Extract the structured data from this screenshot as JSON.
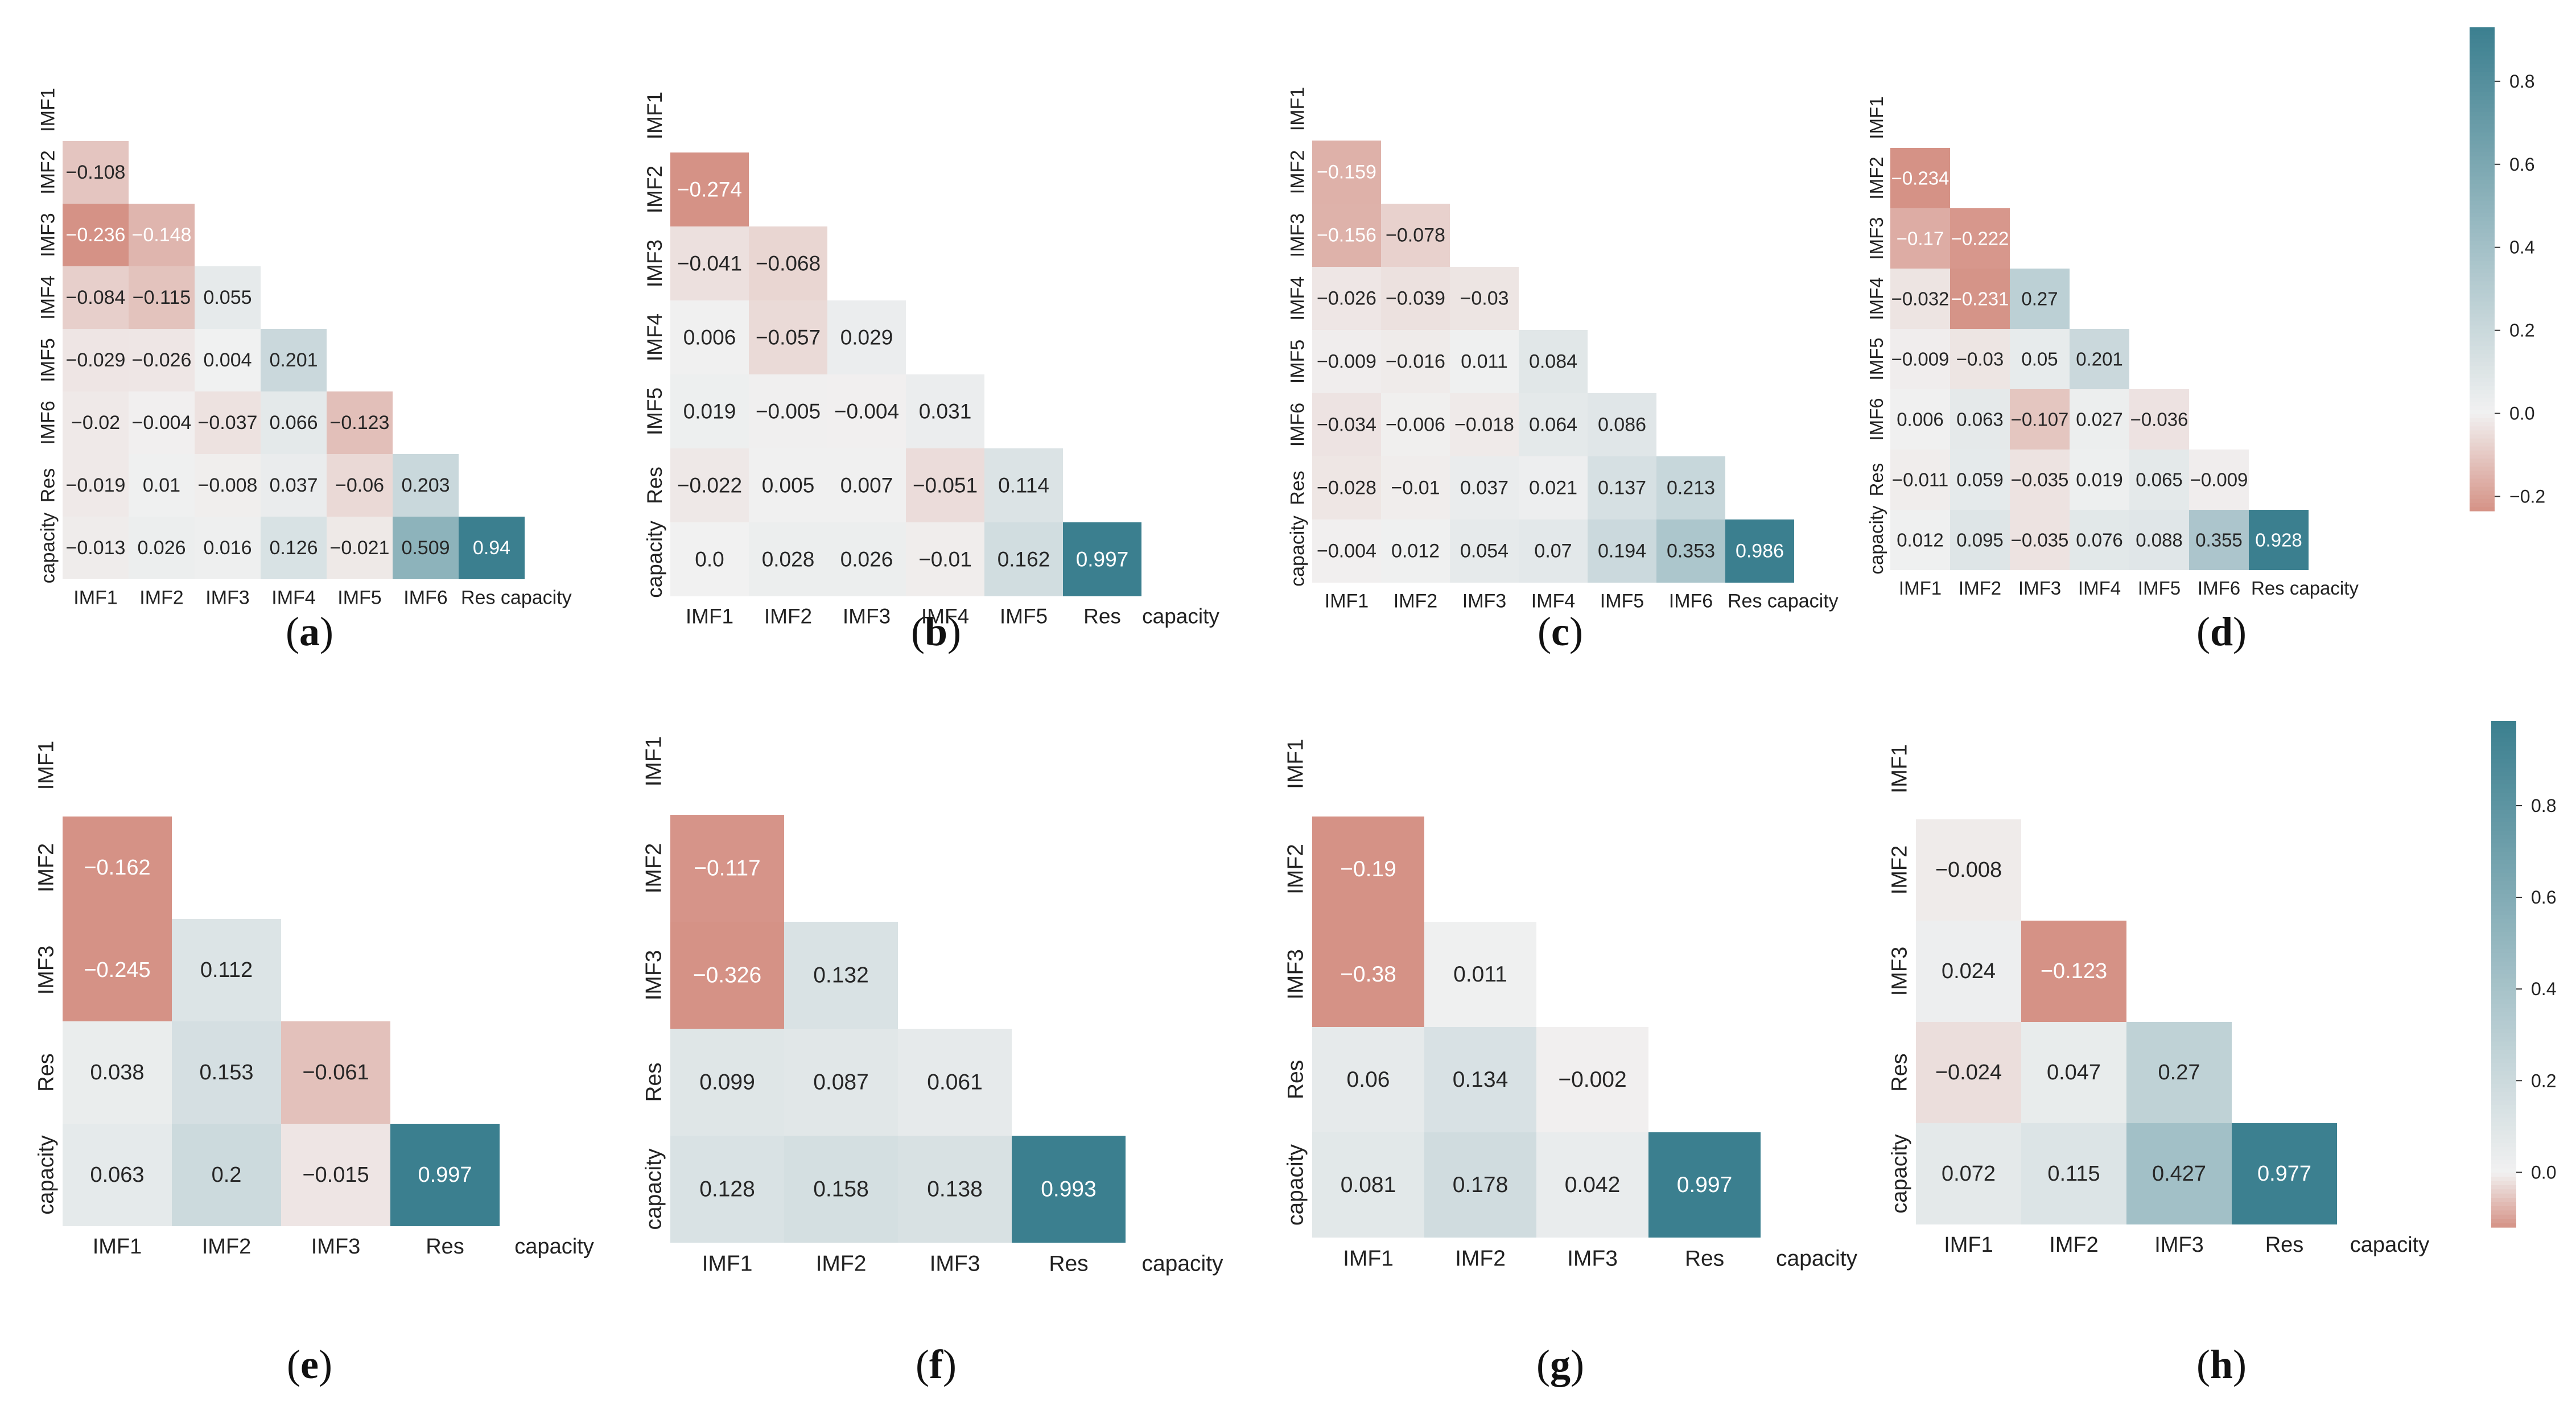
{
  "figure": {
    "colorbars": [
      {
        "min": -0.235,
        "max": 0.93,
        "ticks": [
          "0.8",
          "0.6",
          "0.4",
          "0.2",
          "0.0",
          "−0.2"
        ],
        "tick_values": [
          0.8,
          0.6,
          0.4,
          0.2,
          0.0,
          -0.2
        ]
      },
      {
        "min": -0.12,
        "max": 0.985,
        "ticks": [
          "0.8",
          "0.6",
          "0.4",
          "0.2",
          "0.0"
        ],
        "tick_values": [
          0.8,
          0.6,
          0.4,
          0.2,
          0.0
        ]
      }
    ],
    "colors": {
      "negative_end": "#d59286",
      "neutral": "#f1f1f1",
      "positive_end": "#3b7f8f"
    }
  },
  "chart_data": [
    {
      "type": "heatmap",
      "panel": "(a)",
      "label_start": "(",
      "label_letter": "a",
      "label_end": ")",
      "variables": [
        "IMF1",
        "IMF2",
        "IMF3",
        "IMF4",
        "IMF5",
        "IMF6",
        "Res",
        "capacity"
      ],
      "ylabels": [
        "IMF1",
        "IMF2",
        "IMF3",
        "IMF4",
        "IMF5",
        "IMF6",
        "Res",
        "capacity"
      ],
      "xlabels": [
        "IMF1",
        "IMF2",
        "IMF3",
        "IMF4",
        "IMF5",
        "IMF6",
        "Res capacity"
      ],
      "rows": [
        [],
        [
          "−0.108"
        ],
        [
          "−0.236",
          "−0.148"
        ],
        [
          "−0.084",
          "−0.115",
          "0.055"
        ],
        [
          "−0.029",
          "−0.026",
          "0.004",
          "0.201"
        ],
        [
          "−0.02",
          "−0.004",
          "−0.037",
          "0.066",
          "−0.123"
        ],
        [
          "−0.019",
          "0.01",
          "−0.008",
          "0.037",
          "−0.06",
          "0.203"
        ],
        [
          "−0.013",
          "0.026",
          "0.016",
          "0.126",
          "−0.021",
          "0.509",
          "0.94"
        ]
      ]
    },
    {
      "type": "heatmap",
      "panel": "(b)",
      "label_start": "(",
      "label_letter": "b",
      "label_end": ")",
      "variables": [
        "IMF1",
        "IMF2",
        "IMF3",
        "IMF4",
        "IMF5",
        "Res",
        "capacity"
      ],
      "ylabels": [
        "IMF1",
        "IMF2",
        "IMF3",
        "IMF4",
        "IMF5",
        "Res",
        "capacity"
      ],
      "xlabels": [
        "IMF1",
        "IMF2",
        "IMF3",
        "IMF4",
        "IMF5",
        "Res",
        "capacity"
      ],
      "rows": [
        [],
        [
          "−0.274"
        ],
        [
          "−0.041",
          "−0.068"
        ],
        [
          "0.006",
          "−0.057",
          "0.029"
        ],
        [
          "0.019",
          "−0.005",
          "−0.004",
          "0.031"
        ],
        [
          "−0.022",
          "0.005",
          "0.007",
          "−0.051",
          "0.114"
        ],
        [
          "0.0",
          "0.028",
          "0.026",
          "−0.01",
          "0.162",
          "0.997"
        ]
      ]
    },
    {
      "type": "heatmap",
      "panel": "(c)",
      "label_start": "(",
      "label_letter": "c",
      "label_end": ")",
      "variables": [
        "IMF1",
        "IMF2",
        "IMF3",
        "IMF4",
        "IMF5",
        "IMF6",
        "Res",
        "capacity"
      ],
      "ylabels": [
        "IMF1",
        "IMF2",
        "IMF3",
        "IMF4",
        "IMF5",
        "IMF6",
        "Res",
        "capacity"
      ],
      "xlabels": [
        "IMF1",
        "IMF2",
        "IMF3",
        "IMF4",
        "IMF5",
        "IMF6",
        "Res capacity"
      ],
      "rows": [
        [],
        [
          "−0.159"
        ],
        [
          "−0.156",
          "−0.078"
        ],
        [
          "−0.026",
          "−0.039",
          "−0.03"
        ],
        [
          "−0.009",
          "−0.016",
          "0.011",
          "0.084"
        ],
        [
          "−0.034",
          "−0.006",
          "−0.018",
          "0.064",
          "0.086"
        ],
        [
          "−0.028",
          "−0.01",
          "0.037",
          "0.021",
          "0.137",
          "0.213"
        ],
        [
          "−0.004",
          "0.012",
          "0.054",
          "0.07",
          "0.194",
          "0.353",
          "0.986"
        ]
      ]
    },
    {
      "type": "heatmap",
      "panel": "(d)",
      "label_start": "(",
      "label_letter": "d",
      "label_end": ")",
      "variables": [
        "IMF1",
        "IMF2",
        "IMF3",
        "IMF4",
        "IMF5",
        "IMF6",
        "Res",
        "capacity"
      ],
      "ylabels": [
        "IMF1",
        "IMF2",
        "IMF3",
        "IMF4",
        "IMF5",
        "IMF6",
        "Res",
        "capacity"
      ],
      "xlabels": [
        "IMF1",
        "IMF2",
        "IMF3",
        "IMF4",
        "IMF5",
        "IMF6",
        "Res capacity"
      ],
      "rows": [
        [],
        [
          "−0.234"
        ],
        [
          "−0.17",
          "−0.222"
        ],
        [
          "−0.032",
          "−0.231",
          "0.27"
        ],
        [
          "−0.009",
          "−0.03",
          "0.05",
          "0.201"
        ],
        [
          "0.006",
          "0.063",
          "−0.107",
          "0.027",
          "−0.036"
        ],
        [
          "−0.011",
          "0.059",
          "−0.035",
          "0.019",
          "0.065",
          "−0.009"
        ],
        [
          "0.012",
          "0.095",
          "−0.035",
          "0.076",
          "0.088",
          "0.355",
          "0.928"
        ]
      ]
    },
    {
      "type": "heatmap",
      "panel": "(e)",
      "label_start": "(",
      "label_letter": "e",
      "label_end": ")",
      "variables": [
        "IMF1",
        "IMF2",
        "IMF3",
        "Res",
        "capacity"
      ],
      "ylabels": [
        "IMF1",
        "IMF2",
        "IMF3",
        "Res",
        "capacity"
      ],
      "xlabels": [
        "IMF1",
        "IMF2",
        "IMF3",
        "Res",
        "capacity"
      ],
      "rows": [
        [],
        [
          "−0.162"
        ],
        [
          "−0.245",
          "0.112"
        ],
        [
          "0.038",
          "0.153",
          "−0.061"
        ],
        [
          "0.063",
          "0.2",
          "−0.015",
          "0.997"
        ]
      ]
    },
    {
      "type": "heatmap",
      "panel": "(f)",
      "label_start": "(",
      "label_letter": "f",
      "label_end": ")",
      "variables": [
        "IMF1",
        "IMF2",
        "IMF3",
        "Res",
        "capacity"
      ],
      "ylabels": [
        "IMF1",
        "IMF2",
        "IMF3",
        "Res",
        "capacity"
      ],
      "xlabels": [
        "IMF1",
        "IMF2",
        "IMF3",
        "Res",
        "capacity"
      ],
      "rows": [
        [],
        [
          "−0.117"
        ],
        [
          "−0.326",
          "0.132"
        ],
        [
          "0.099",
          "0.087",
          "0.061"
        ],
        [
          "0.128",
          "0.158",
          "0.138",
          "0.993"
        ]
      ]
    },
    {
      "type": "heatmap",
      "panel": "(g)",
      "label_start": "(",
      "label_letter": "g",
      "label_end": ")",
      "variables": [
        "IMF1",
        "IMF2",
        "IMF3",
        "Res",
        "capacity"
      ],
      "ylabels": [
        "IMF1",
        "IMF2",
        "IMF3",
        "Res",
        "capacity"
      ],
      "xlabels": [
        "IMF1",
        "IMF2",
        "IMF3",
        "Res",
        "capacity"
      ],
      "rows": [
        [],
        [
          "−0.19"
        ],
        [
          "−0.38",
          "0.011"
        ],
        [
          "0.06",
          "0.134",
          "−0.002"
        ],
        [
          "0.081",
          "0.178",
          "0.042",
          "0.997"
        ]
      ]
    },
    {
      "type": "heatmap",
      "panel": "(h)",
      "label_start": "(",
      "label_letter": "h",
      "label_end": ")",
      "variables": [
        "IMF1",
        "IMF2",
        "IMF3",
        "Res",
        "capacity"
      ],
      "ylabels": [
        "IMF1",
        "IMF2",
        "IMF3",
        "Res",
        "capacity"
      ],
      "xlabels": [
        "IMF1",
        "IMF2",
        "IMF3",
        "Res",
        "capacity"
      ],
      "rows": [
        [],
        [
          "−0.008"
        ],
        [
          "0.024",
          "−0.123"
        ],
        [
          "−0.024",
          "0.047",
          "0.27"
        ],
        [
          "0.072",
          "0.115",
          "0.427",
          "0.977"
        ]
      ]
    }
  ]
}
